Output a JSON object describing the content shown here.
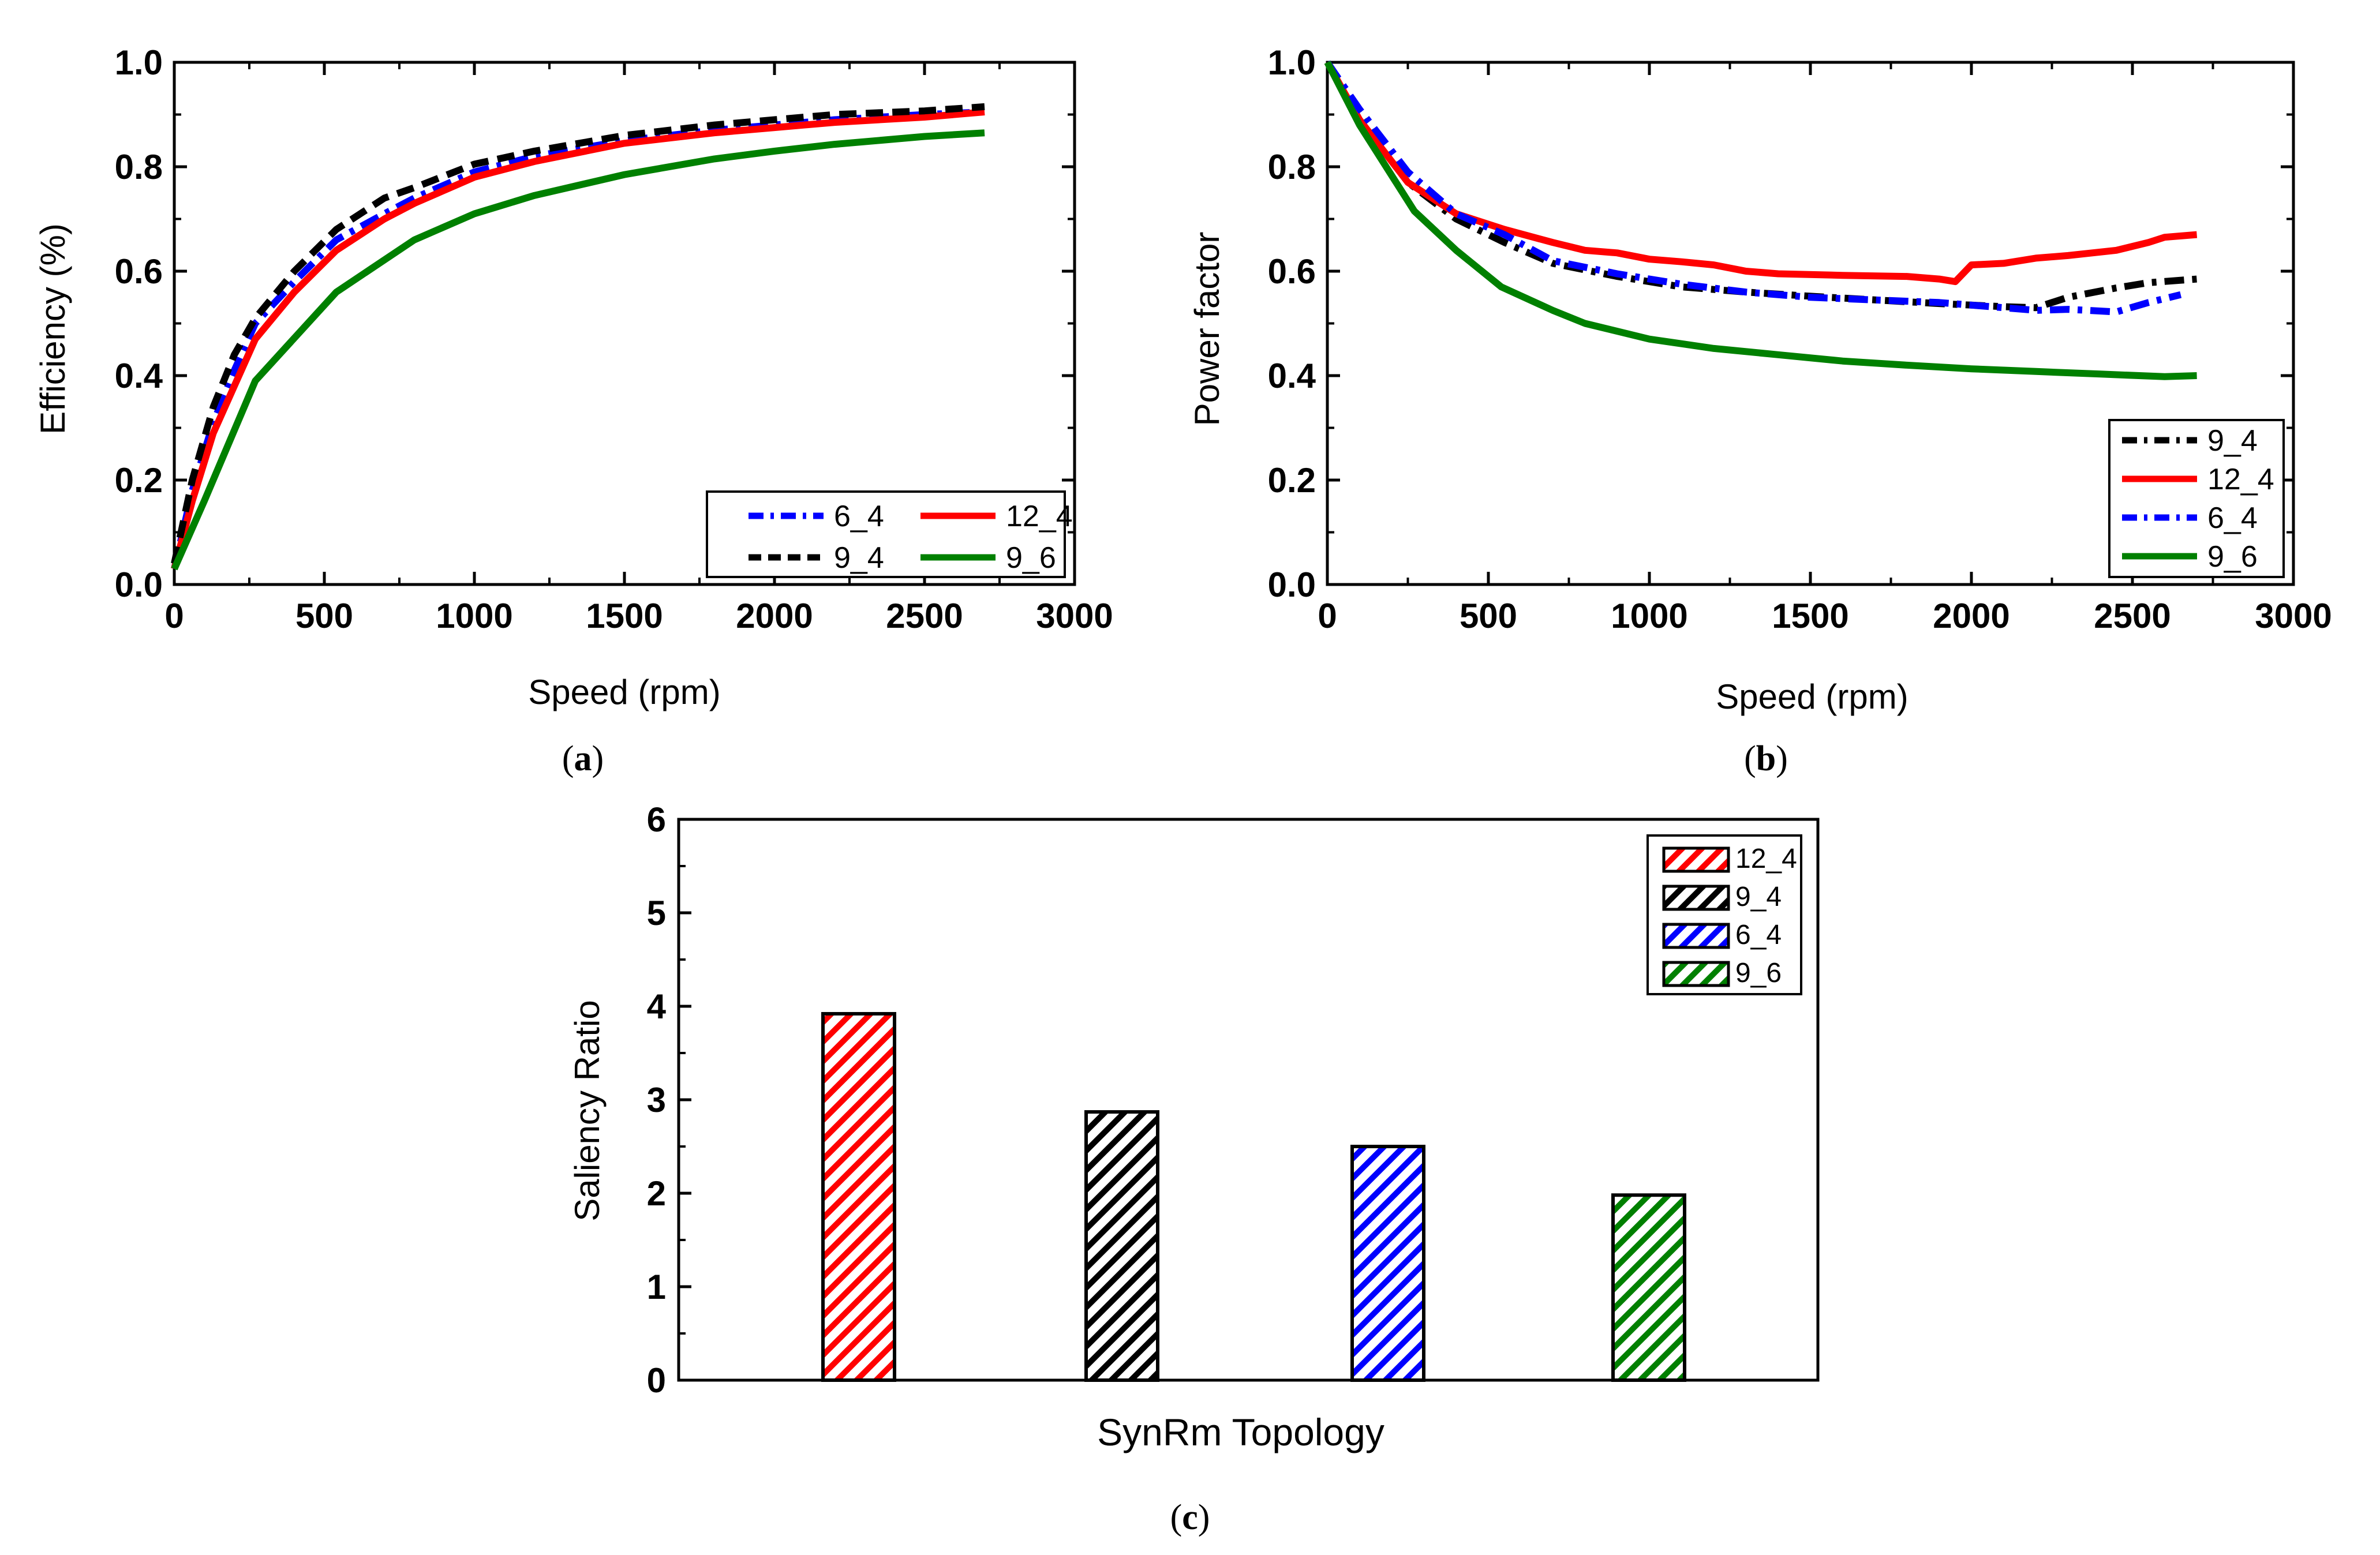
{
  "chart_data": [
    {
      "type": "line",
      "panel": "a",
      "xlabel": "Speed (rpm)",
      "ylabel": "Efficiency (%)",
      "xlim": [
        0,
        3000
      ],
      "ylim": [
        0.0,
        1.0
      ],
      "xticks": [
        "0",
        "500",
        "1000",
        "1500",
        "2000",
        "2500",
        "3000"
      ],
      "yticks": [
        "0.0",
        "0.2",
        "0.4",
        "0.6",
        "0.8",
        "1.0"
      ],
      "legend_position": "bottom-right",
      "legend_columns": 2,
      "series": [
        {
          "name": "6_4",
          "color": "#0000ff",
          "dash": "dashdot",
          "x": [
            0,
            60,
            130,
            200,
            270,
            400,
            540,
            700,
            800,
            1000,
            1200,
            1500,
            1800,
            2000,
            2200,
            2500,
            2700
          ],
          "y": [
            0.03,
            0.18,
            0.31,
            0.41,
            0.5,
            0.58,
            0.66,
            0.71,
            0.74,
            0.79,
            0.82,
            0.85,
            0.87,
            0.88,
            0.89,
            0.9,
            0.905
          ]
        },
        {
          "name": "12_4",
          "color": "#ff0000",
          "dash": "solid",
          "x": [
            0,
            60,
            130,
            200,
            270,
            400,
            540,
            700,
            800,
            1000,
            1200,
            1500,
            1800,
            2000,
            2200,
            2500,
            2700
          ],
          "y": [
            0.03,
            0.16,
            0.29,
            0.38,
            0.47,
            0.56,
            0.64,
            0.7,
            0.73,
            0.78,
            0.81,
            0.845,
            0.865,
            0.875,
            0.885,
            0.895,
            0.905
          ]
        },
        {
          "name": "9_4",
          "color": "#000000",
          "dash": "dash",
          "x": [
            0,
            60,
            130,
            200,
            270,
            400,
            540,
            700,
            800,
            1000,
            1200,
            1500,
            1800,
            2000,
            2200,
            2500,
            2700
          ],
          "y": [
            0.04,
            0.2,
            0.34,
            0.44,
            0.51,
            0.6,
            0.68,
            0.74,
            0.76,
            0.805,
            0.83,
            0.86,
            0.88,
            0.89,
            0.9,
            0.907,
            0.915
          ]
        },
        {
          "name": "9_6",
          "color": "#008000",
          "dash": "solid",
          "x": [
            0,
            100,
            270,
            540,
            800,
            1000,
            1200,
            1500,
            1800,
            2000,
            2200,
            2500,
            2700
          ],
          "y": [
            0.03,
            0.16,
            0.39,
            0.56,
            0.66,
            0.71,
            0.745,
            0.785,
            0.815,
            0.83,
            0.843,
            0.858,
            0.865
          ]
        }
      ]
    },
    {
      "type": "line",
      "panel": "b",
      "xlabel": "Speed (rpm)",
      "ylabel": "Power factor",
      "xlim": [
        0,
        3000
      ],
      "ylim": [
        0.0,
        1.0
      ],
      "xticks": [
        "0",
        "500",
        "1000",
        "1500",
        "2000",
        "2500",
        "3000"
      ],
      "yticks": [
        "0.0",
        "0.2",
        "0.4",
        "0.6",
        "0.8",
        "1.0"
      ],
      "legend_position": "bottom-right",
      "legend_columns": 1,
      "series": [
        {
          "name": "9_4",
          "color": "#000000",
          "dash": "dashdot",
          "x": [
            0,
            100,
            250,
            400,
            550,
            700,
            900,
            1100,
            1300,
            1500,
            1700,
            1900,
            2000,
            2100,
            2200,
            2300,
            2450,
            2550,
            2700
          ],
          "y": [
            1.0,
            0.9,
            0.77,
            0.7,
            0.655,
            0.615,
            0.59,
            0.57,
            0.56,
            0.552,
            0.545,
            0.538,
            0.535,
            0.532,
            0.53,
            0.55,
            0.568,
            0.578,
            0.585
          ]
        },
        {
          "name": "12_4",
          "color": "#ff0000",
          "dash": "solid",
          "x": [
            0,
            100,
            250,
            400,
            550,
            700,
            800,
            900,
            1000,
            1100,
            1200,
            1300,
            1400,
            1600,
            1800,
            1900,
            1950,
            2000,
            2100,
            2200,
            2300,
            2450,
            2550,
            2600,
            2700
          ],
          "y": [
            1.0,
            0.89,
            0.77,
            0.71,
            0.68,
            0.655,
            0.64,
            0.635,
            0.623,
            0.618,
            0.612,
            0.6,
            0.595,
            0.592,
            0.59,
            0.585,
            0.58,
            0.612,
            0.615,
            0.625,
            0.63,
            0.64,
            0.655,
            0.665,
            0.67
          ]
        },
        {
          "name": "6_4",
          "color": "#0000ff",
          "dash": "dashdot",
          "x": [
            0,
            100,
            250,
            400,
            550,
            700,
            900,
            1100,
            1300,
            1500,
            1700,
            1900,
            2000,
            2100,
            2200,
            2300,
            2450,
            2550,
            2650
          ],
          "y": [
            1.0,
            0.91,
            0.79,
            0.71,
            0.67,
            0.62,
            0.595,
            0.575,
            0.56,
            0.55,
            0.545,
            0.54,
            0.535,
            0.53,
            0.525,
            0.527,
            0.522,
            0.54,
            0.555
          ]
        },
        {
          "name": "9_6",
          "color": "#008000",
          "dash": "solid",
          "x": [
            0,
            100,
            270,
            400,
            540,
            700,
            800,
            1000,
            1200,
            1400,
            1600,
            1800,
            2000,
            2200,
            2400,
            2600,
            2700
          ],
          "y": [
            1.0,
            0.88,
            0.715,
            0.64,
            0.57,
            0.525,
            0.5,
            0.47,
            0.452,
            0.44,
            0.428,
            0.42,
            0.413,
            0.408,
            0.403,
            0.398,
            0.4
          ]
        }
      ]
    },
    {
      "type": "bar",
      "panel": "c",
      "xlabel": "SynRm Topology",
      "ylabel": "Saliency Ratio",
      "ylim": [
        0,
        6
      ],
      "yticks": [
        "0",
        "1",
        "2",
        "3",
        "4",
        "5",
        "6"
      ],
      "categories": [
        "12_4",
        "9_4",
        "6_4",
        "9_6"
      ],
      "values": [
        3.92,
        2.87,
        2.5,
        1.98
      ],
      "colors": [
        "#ff0000",
        "#000000",
        "#0000ff",
        "#008000"
      ],
      "hatch": "diagonal",
      "legend_position": "top-right",
      "legend_entries": [
        "12_4",
        "9_4",
        "6_4",
        "9_6"
      ]
    }
  ],
  "captions": {
    "a": "(a)",
    "b": "(b)",
    "c": "(c)"
  }
}
